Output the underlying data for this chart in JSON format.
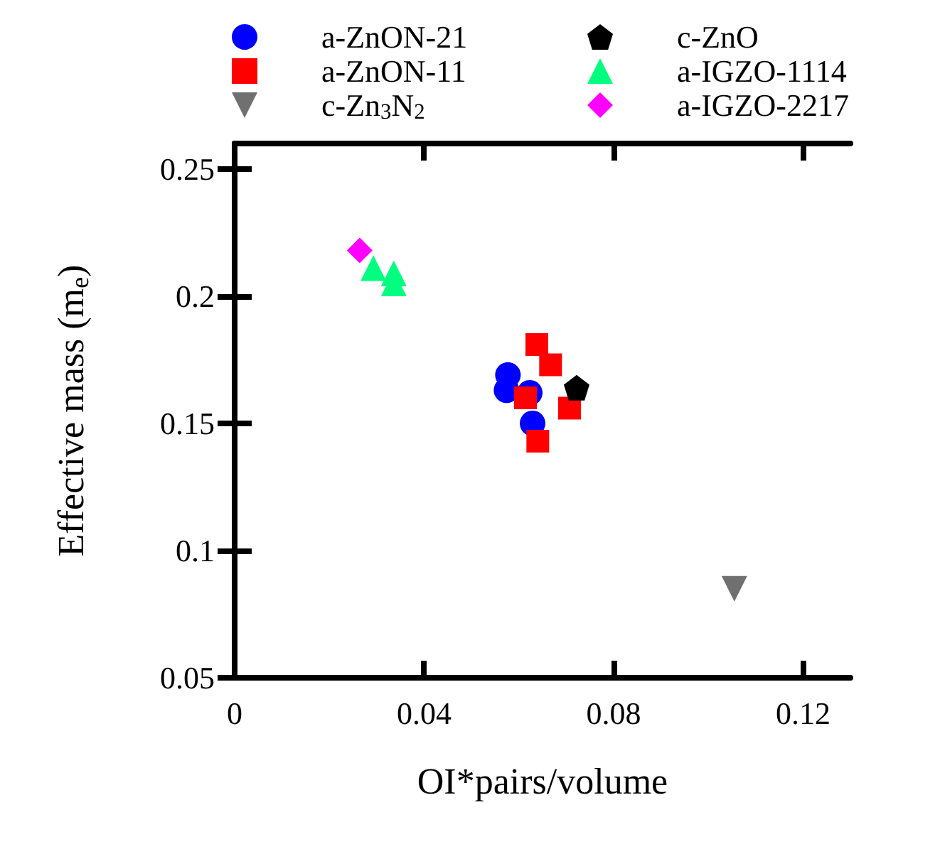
{
  "chart_data": {
    "type": "scatter",
    "xlabel": "OI*pairs/volume",
    "ylabel": "Effective mass (m$_{e}$)",
    "xlim": [
      0,
      0.13
    ],
    "xticks": [
      0,
      0.04,
      0.08,
      0.12
    ],
    "ylim": [
      0.05,
      0.26
    ],
    "yticks": [
      0.05,
      0.1,
      0.15,
      0.2,
      0.25
    ],
    "grid": false,
    "legend": "top",
    "series": [
      {
        "name": "a-ZnON-21",
        "color": "#0000ff",
        "marker": "circle",
        "x": [
          0.0577,
          0.0574,
          0.0623,
          0.0629
        ],
        "values": [
          0.169,
          0.163,
          0.162,
          0.15
        ]
      },
      {
        "name": "a-ZnON-11",
        "color": "#ff0000",
        "marker": "square",
        "x": [
          0.0638,
          0.0667,
          0.0614,
          0.0707,
          0.064
        ],
        "values": [
          0.181,
          0.173,
          0.16,
          0.156,
          0.143
        ]
      },
      {
        "name": "c-Zn$_{3}$N$_{2}$",
        "color": "#707070",
        "marker": "triangle-down",
        "x": [
          0.1055
        ],
        "values": [
          0.085
        ]
      },
      {
        "name": "c-ZnO",
        "color": "#000000",
        "x": [
          0.0722
        ],
        "values": [
          0.164
        ]
      },
      {
        "name": "a-IGZO-1114",
        "color": "#00ff7f",
        "marker": "triangle",
        "x": [
          0.0293,
          0.0336,
          0.0336
        ],
        "values": [
          0.211,
          0.209,
          0.205
        ]
      },
      {
        "name": "a-IGZO-2217",
        "color": "#ff00ff",
        "marker": "diamond",
        "x": [
          0.0264
        ],
        "values": [
          0.218
        ]
      }
    ]
  }
}
